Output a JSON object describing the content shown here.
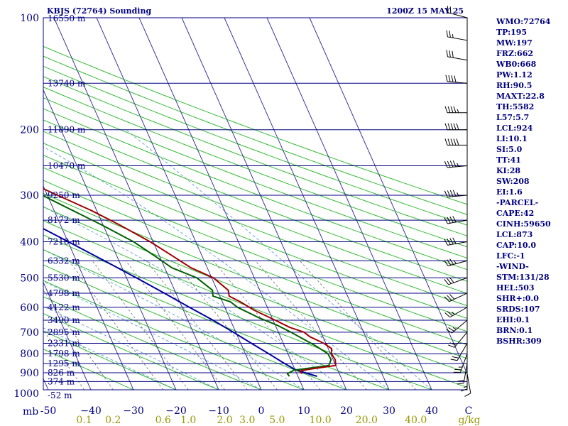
{
  "header": {
    "station": "KBJS (72764) Sounding",
    "time": "1200Z 15 MAY 25"
  },
  "chart_data": {
    "type": "line",
    "title": "KBJS (72764) Sounding",
    "xlabel": "",
    "ylabel": "",
    "axis_corner_label": "mb",
    "pressure_ticks": [
      {
        "p": 100,
        "label": "100"
      },
      {
        "p": 200,
        "label": "200"
      },
      {
        "p": 300,
        "label": "300"
      },
      {
        "p": 400,
        "label": "400"
      },
      {
        "p": 500,
        "label": "500"
      },
      {
        "p": 600,
        "label": "600"
      },
      {
        "p": 700,
        "label": "700"
      },
      {
        "p": 800,
        "label": "800"
      },
      {
        "p": 900,
        "label": "900"
      },
      {
        "p": 1000,
        "label": "1000"
      }
    ],
    "temperature_ticks": [
      {
        "t": -50,
        "label": "-50"
      },
      {
        "t": -40,
        "label": "−40"
      },
      {
        "t": -30,
        "label": "−30"
      },
      {
        "t": -20,
        "label": "−20"
      },
      {
        "t": -10,
        "label": "−10"
      },
      {
        "t": 0,
        "label": "0"
      },
      {
        "t": 10,
        "label": "10"
      },
      {
        "t": 20,
        "label": "20"
      },
      {
        "t": 30,
        "label": "30"
      },
      {
        "t": 40,
        "label": "40"
      }
    ],
    "temperature_end_label": "C",
    "mixing_ratio_labels": [
      {
        "w": 0.1,
        "label": "0.1"
      },
      {
        "w": 0.2,
        "label": "0.2"
      },
      {
        "w": 0.6,
        "label": "0.6"
      },
      {
        "w": 1.0,
        "label": "1.0"
      },
      {
        "w": 2.0,
        "label": "2.0"
      },
      {
        "w": 3.0,
        "label": "3.0"
      },
      {
        "w": 5.0,
        "label": "5.0"
      },
      {
        "w": 10.0,
        "label": "10.0"
      },
      {
        "w": 20.0,
        "label": "20.0"
      },
      {
        "w": 40.0,
        "label": "40.0"
      }
    ],
    "mixing_ratio_unit": "g/kg",
    "height_labels": [
      {
        "p": 100,
        "label": "16550 m"
      },
      {
        "p": 150,
        "label": "13740 m"
      },
      {
        "p": 200,
        "label": "11890 m"
      },
      {
        "p": 250,
        "label": "10470 m"
      },
      {
        "p": 300,
        "label": "9250 m"
      },
      {
        "p": 350,
        "label": "8172 m"
      },
      {
        "p": 400,
        "label": "7210 m"
      },
      {
        "p": 450,
        "label": "6332 m"
      },
      {
        "p": 500,
        "label": "5530 m"
      },
      {
        "p": 550,
        "label": "4798 m"
      },
      {
        "p": 600,
        "label": "4122 m"
      },
      {
        "p": 650,
        "label": "3490 m"
      },
      {
        "p": 700,
        "label": "2895 m"
      },
      {
        "p": 750,
        "label": "2331 m"
      },
      {
        "p": 800,
        "label": "1798 m"
      },
      {
        "p": 850,
        "label": "1295 m"
      },
      {
        "p": 900,
        "label": "826 m"
      },
      {
        "p": 950,
        "label": "374 m"
      },
      {
        "p": 1000,
        "label": "-52 m"
      }
    ],
    "temperature_profile": [
      {
        "p": 905,
        "t": 11.2
      },
      {
        "p": 890,
        "t": 11.0
      },
      {
        "p": 880,
        "t": 13.6
      },
      {
        "p": 860,
        "t": 20.0
      },
      {
        "p": 830,
        "t": 20.5
      },
      {
        "p": 800,
        "t": 20.2
      },
      {
        "p": 775,
        "t": 20.8
      },
      {
        "p": 750,
        "t": 19.5
      },
      {
        "p": 720,
        "t": 16.9
      },
      {
        "p": 700,
        "t": 16.0
      },
      {
        "p": 680,
        "t": 13.2
      },
      {
        "p": 650,
        "t": 10.5
      },
      {
        "p": 610,
        "t": 6.5
      },
      {
        "p": 580,
        "t": 4.2
      },
      {
        "p": 560,
        "t": 2.2
      },
      {
        "p": 540,
        "t": 2.6
      },
      {
        "p": 500,
        "t": 0.4
      },
      {
        "p": 470,
        "t": -3.8
      },
      {
        "p": 440,
        "t": -6.6
      },
      {
        "p": 400,
        "t": -10.7
      },
      {
        "p": 360,
        "t": -16.2
      },
      {
        "p": 330,
        "t": -21.2
      },
      {
        "p": 300,
        "t": -27.6
      },
      {
        "p": 270,
        "t": -34.6
      },
      {
        "p": 250,
        "t": -39.7
      },
      {
        "p": 230,
        "t": -44.0
      },
      {
        "p": 215,
        "t": -49.4
      },
      {
        "p": 205,
        "t": -51.6
      },
      {
        "p": 200,
        "t": -49.2
      },
      {
        "p": 190,
        "t": -48.1
      },
      {
        "p": 180,
        "t": -44.5
      },
      {
        "p": 170,
        "t": -38.7
      },
      {
        "p": 160,
        "t": -34.1
      },
      {
        "p": 150,
        "t": -29.2
      },
      {
        "p": 140,
        "t": -27.7
      },
      {
        "p": 130,
        "t": -24.4
      },
      {
        "p": 115,
        "t": -19.3
      },
      {
        "p": 100,
        "t": -14.3
      }
    ],
    "dewpoint_profile": [
      {
        "p": 920,
        "t": 8.0
      },
      {
        "p": 905,
        "t": 7.8
      },
      {
        "p": 885,
        "t": 9.8
      },
      {
        "p": 875,
        "t": 13.4
      },
      {
        "p": 860,
        "t": 18.4
      },
      {
        "p": 830,
        "t": 19.5
      },
      {
        "p": 800,
        "t": 19.4
      },
      {
        "p": 760,
        "t": 17.2
      },
      {
        "p": 730,
        "t": 15.1
      },
      {
        "p": 700,
        "t": 12.9
      },
      {
        "p": 670,
        "t": 10.4
      },
      {
        "p": 640,
        "t": 6.9
      },
      {
        "p": 600,
        "t": 3.0
      },
      {
        "p": 580,
        "t": 1.9
      },
      {
        "p": 560,
        "t": -1.6
      },
      {
        "p": 540,
        "t": -1.1
      },
      {
        "p": 500,
        "t": -3.5
      },
      {
        "p": 470,
        "t": -8.3
      },
      {
        "p": 440,
        "t": -10.8
      },
      {
        "p": 400,
        "t": -14.6
      },
      {
        "p": 360,
        "t": -20.4
      },
      {
        "p": 320,
        "t": -27.4
      },
      {
        "p": 300,
        "t": -31.2
      },
      {
        "p": 270,
        "t": -38.6
      },
      {
        "p": 250,
        "t": -43.4
      },
      {
        "p": 225,
        "t": -48.8
      },
      {
        "p": 210,
        "t": -53.4
      },
      {
        "p": 200,
        "t": -53.3
      },
      {
        "p": 190,
        "t": -51.7
      },
      {
        "p": 180,
        "t": -49.7
      },
      {
        "p": 165,
        "t": -47.8
      },
      {
        "p": 150,
        "t": -46.4
      },
      {
        "p": 130,
        "t": -52.1
      },
      {
        "p": 110,
        "t": -59.3
      },
      {
        "p": 100,
        "t": -63.7
      }
    ],
    "parcel_profile": [
      {
        "p": 920,
        "t": 14.5
      },
      {
        "p": 900,
        "t": 12.0
      },
      {
        "p": 880,
        "t": 9.9
      },
      {
        "p": 850,
        "t": 8.2
      },
      {
        "p": 800,
        "t": 5.5
      },
      {
        "p": 750,
        "t": 2.5
      },
      {
        "p": 700,
        "t": -0.6
      },
      {
        "p": 650,
        "t": -4.1
      },
      {
        "p": 600,
        "t": -8.3
      },
      {
        "p": 550,
        "t": -12.7
      },
      {
        "p": 500,
        "t": -17.7
      },
      {
        "p": 450,
        "t": -23.4
      },
      {
        "p": 400,
        "t": -29.9
      },
      {
        "p": 350,
        "t": -37.4
      },
      {
        "p": 300,
        "t": -46.0
      },
      {
        "p": 250,
        "t": -55.9
      },
      {
        "p": 200,
        "t": -67.7
      },
      {
        "p": 150,
        "t": -82.0
      },
      {
        "p": 110,
        "t": -96.0
      }
    ],
    "wind_barbs": [
      {
        "p": 905,
        "dir": 170,
        "spd": 10
      },
      {
        "p": 880,
        "dir": 180,
        "spd": 15
      },
      {
        "p": 850,
        "dir": 190,
        "spd": 20
      },
      {
        "p": 800,
        "dir": 200,
        "spd": 25
      },
      {
        "p": 750,
        "dir": 210,
        "spd": 20
      },
      {
        "p": 700,
        "dir": 220,
        "spd": 20
      },
      {
        "p": 650,
        "dir": 230,
        "spd": 25
      },
      {
        "p": 600,
        "dir": 240,
        "spd": 25
      },
      {
        "p": 550,
        "dir": 245,
        "spd": 30
      },
      {
        "p": 500,
        "dir": 250,
        "spd": 30
      },
      {
        "p": 450,
        "dir": 255,
        "spd": 35
      },
      {
        "p": 400,
        "dir": 260,
        "spd": 40
      },
      {
        "p": 350,
        "dir": 260,
        "spd": 40
      },
      {
        "p": 300,
        "dir": 265,
        "spd": 45
      },
      {
        "p": 250,
        "dir": 265,
        "spd": 45
      },
      {
        "p": 220,
        "dir": 270,
        "spd": 50
      },
      {
        "p": 200,
        "dir": 270,
        "spd": 50
      },
      {
        "p": 180,
        "dir": 270,
        "spd": 45
      },
      {
        "p": 150,
        "dir": 275,
        "spd": 40
      },
      {
        "p": 130,
        "dir": 280,
        "spd": 30
      },
      {
        "p": 115,
        "dir": 280,
        "spd": 25
      },
      {
        "p": 100,
        "dir": 285,
        "spd": 20
      }
    ]
  },
  "stats": [
    "WMO:72764",
    "TP:195",
    "MW:197",
    "FRZ:662",
    "WB0:668",
    "PW:1.12",
    "RH:90.5",
    "MAXT:22.8",
    "TH:5582",
    "L57:5.7",
    "LCL:924",
    "LI:10.1",
    "SI:5.0",
    "TT:41",
    "KI:28",
    "SW:208",
    "EI:1.6",
    "-PARCEL-",
    "CAPE:42",
    "CINH:59650",
    "LCL:873",
    "CAP:10.0",
    "LFC:-1",
    "-WIND-",
    "STM:131/28",
    "HEL:503",
    "SHR+:0.0",
    "SRDS:107",
    "EHI:0.1",
    "BRN:0.1",
    "BSHR:309"
  ],
  "colors": {
    "isobar": "#000080",
    "isotherm": "#3a3a9a",
    "dry_adiabat": "#33bb33",
    "moist_adiabat": "#6fa5d8",
    "mixing_ratio": "#888888",
    "temperature": "#a00000",
    "dewpoint": "#006000",
    "parcel": "#0000a0",
    "text": "#000080",
    "mixing_label": "#999900"
  }
}
